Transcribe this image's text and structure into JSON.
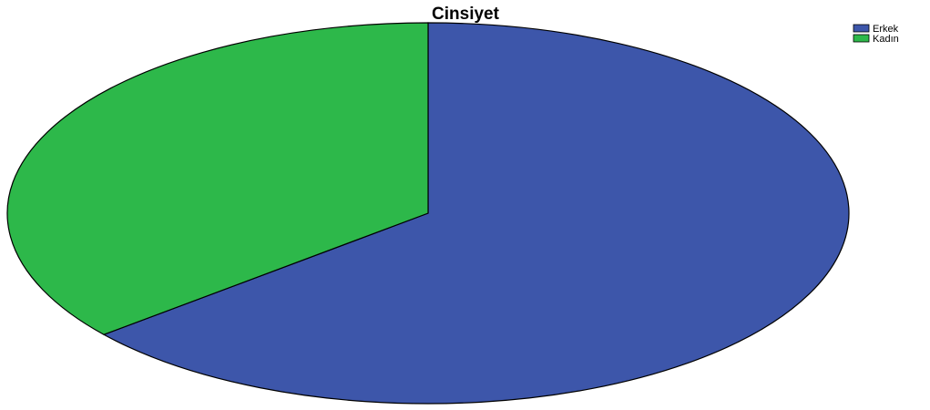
{
  "chart_data": {
    "type": "pie",
    "title": "Cinsiyet",
    "legend_position": "top-right",
    "categories": [
      "Erkek",
      "Kadın"
    ],
    "values": [
      0.64,
      0.36
    ],
    "colors": [
      "#3d56aa",
      "#2db84a"
    ],
    "legend": [
      {
        "label": "Erkek",
        "color": "#3d56aa"
      },
      {
        "label": "Kadın",
        "color": "#2db84a"
      }
    ]
  }
}
